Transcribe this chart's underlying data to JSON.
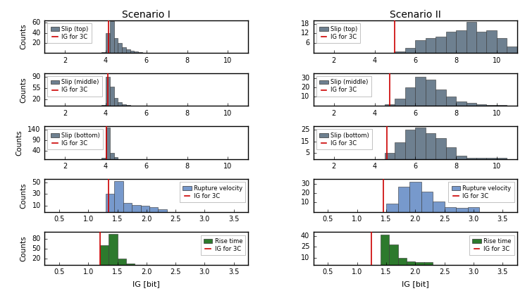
{
  "title_left": "Scenario I",
  "title_right": "Scenario II",
  "xlabel": "IG [bit]",
  "ylabel": "Counts",
  "slip_color": "#6e8090",
  "rupture_color": "#7799cc",
  "rise_color": "#2d7a2d",
  "line_color": "#cc0000",
  "s1_slip_top": {
    "label": "Slip (top)",
    "ig_line": 4.15,
    "xlim": [
      1,
      11
    ],
    "xticks": [
      2,
      4,
      6,
      8,
      10
    ],
    "ylim": [
      0,
      65
    ],
    "yticks": [
      20,
      40,
      60
    ],
    "legend_loc": "upper left",
    "bin_edges": [
      3.8,
      4.0,
      4.2,
      4.4,
      4.6,
      4.8,
      5.0,
      5.2,
      5.4,
      5.6,
      5.8,
      6.0,
      6.5,
      7.0
    ],
    "counts": [
      2,
      40,
      63,
      30,
      20,
      12,
      8,
      5,
      3,
      2,
      1,
      1,
      1
    ]
  },
  "s1_slip_mid": {
    "label": "Slip (middle)",
    "ig_line": 4.1,
    "xlim": [
      1,
      11
    ],
    "xticks": [
      2,
      4,
      6,
      8,
      10
    ],
    "ylim": [
      0,
      100
    ],
    "yticks": [
      20,
      55,
      90
    ],
    "legend_loc": "upper left",
    "bin_edges": [
      3.8,
      4.0,
      4.2,
      4.4,
      4.6,
      4.8,
      5.0,
      5.2,
      5.4
    ],
    "counts": [
      3,
      90,
      60,
      25,
      12,
      5,
      3,
      1
    ]
  },
  "s1_slip_bot": {
    "label": "Slip (bottom)",
    "ig_line": 4.05,
    "xlim": [
      1,
      11
    ],
    "xticks": [
      2,
      4,
      6,
      8,
      10
    ],
    "ylim": [
      0,
      155
    ],
    "yticks": [
      40,
      90,
      140
    ],
    "legend_loc": "upper left",
    "bin_edges": [
      3.8,
      4.0,
      4.2,
      4.4,
      4.6
    ],
    "counts": [
      5,
      150,
      30,
      8
    ]
  },
  "s1_rupture": {
    "label": "Rupture velocity",
    "ig_line": 1.35,
    "xlim": [
      0.25,
      3.75
    ],
    "xticks": [
      0.5,
      1.0,
      1.5,
      2.0,
      2.5,
      3.0,
      3.5
    ],
    "ylim": [
      0,
      55
    ],
    "yticks": [
      10,
      30,
      50
    ],
    "legend_loc": "upper right",
    "bin_edges": [
      1.3,
      1.45,
      1.6,
      1.75,
      1.9,
      2.05,
      2.2,
      2.35
    ],
    "counts": [
      30,
      52,
      15,
      12,
      10,
      8,
      4
    ]
  },
  "s1_rise": {
    "label": "Rise time",
    "ig_line": 1.2,
    "xlim": [
      0.25,
      3.75
    ],
    "xticks": [
      0.5,
      1.0,
      1.5,
      2.0,
      2.5,
      3.0,
      3.5
    ],
    "ylim": [
      0,
      100
    ],
    "yticks": [
      20,
      50,
      80
    ],
    "legend_loc": "upper right",
    "bin_edges": [
      1.2,
      1.35,
      1.5,
      1.65,
      1.8
    ],
    "counts": [
      60,
      95,
      18,
      5
    ]
  },
  "s2_slip_top": {
    "label": "Slip (top)",
    "ig_line": 5.0,
    "xlim": [
      1,
      11
    ],
    "xticks": [
      2,
      4,
      6,
      8,
      10
    ],
    "ylim": [
      0,
      20
    ],
    "yticks": [
      6,
      12,
      18
    ],
    "legend_loc": "upper left",
    "bin_edges": [
      5.0,
      5.5,
      6.0,
      6.5,
      7.0,
      7.5,
      8.0,
      8.5,
      9.0,
      9.5,
      10.0,
      10.5,
      11.0
    ],
    "counts": [
      1,
      3,
      8,
      9,
      10,
      13,
      14,
      19,
      13,
      14,
      9,
      4
    ]
  },
  "s2_slip_mid": {
    "label": "Slip (middle)",
    "ig_line": 4.75,
    "xlim": [
      1,
      11
    ],
    "xticks": [
      2,
      4,
      6,
      8,
      10
    ],
    "ylim": [
      0,
      35
    ],
    "yticks": [
      10,
      20,
      30
    ],
    "legend_loc": "upper left",
    "bin_edges": [
      4.5,
      5.0,
      5.5,
      6.0,
      6.5,
      7.0,
      7.5,
      8.0,
      8.5,
      9.0,
      9.5,
      10.0,
      10.5
    ],
    "counts": [
      2,
      8,
      20,
      31,
      28,
      18,
      10,
      5,
      3,
      2,
      1,
      1
    ]
  },
  "s2_slip_bot": {
    "label": "Slip (bottom)",
    "ig_line": 4.6,
    "xlim": [
      1,
      11
    ],
    "xticks": [
      2,
      4,
      6,
      8,
      10
    ],
    "ylim": [
      0,
      28
    ],
    "yticks": [
      5,
      15,
      25
    ],
    "legend_loc": "upper left",
    "bin_edges": [
      4.5,
      5.0,
      5.5,
      6.0,
      6.5,
      7.0,
      7.5,
      8.0,
      8.5,
      9.0,
      9.5,
      10.0,
      10.5
    ],
    "counts": [
      5,
      14,
      25,
      27,
      22,
      18,
      10,
      3,
      1,
      1,
      1,
      1
    ]
  },
  "s2_rupture": {
    "label": "Rupture velocity",
    "ig_line": 1.45,
    "xlim": [
      0.25,
      3.75
    ],
    "xticks": [
      0.5,
      1.0,
      1.5,
      2.0,
      2.5,
      3.0,
      3.5
    ],
    "ylim": [
      0,
      35
    ],
    "yticks": [
      10,
      20,
      30
    ],
    "legend_loc": "upper right",
    "bin_edges": [
      1.5,
      1.7,
      1.9,
      2.1,
      2.3,
      2.5,
      2.7,
      2.9,
      3.1
    ],
    "counts": [
      9,
      27,
      32,
      22,
      11,
      5,
      4,
      5
    ]
  },
  "s2_rise": {
    "label": "Rise time",
    "ig_line": 1.25,
    "xlim": [
      0.25,
      3.75
    ],
    "xticks": [
      0.5,
      1.0,
      1.5,
      2.0,
      2.5,
      3.0,
      3.5
    ],
    "ylim": [
      0,
      45
    ],
    "yticks": [
      10,
      25,
      40
    ],
    "legend_loc": "upper right",
    "bin_edges": [
      1.4,
      1.55,
      1.7,
      1.85,
      2.0,
      2.15,
      2.3
    ],
    "counts": [
      42,
      28,
      10,
      5,
      4,
      4
    ]
  }
}
